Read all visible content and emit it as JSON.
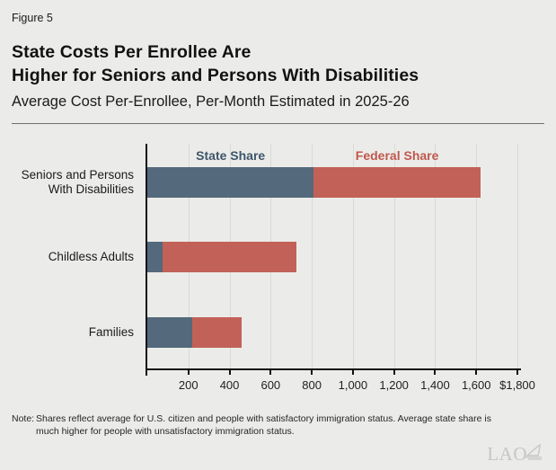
{
  "header": {
    "figure_label": "Figure 5",
    "title_line1": "State Costs Per Enrollee Are",
    "title_line2": "Higher for Seniors and Persons With Disabilities",
    "subtitle": "Average Cost Per-Enrollee, Per-Month Estimated in 2025-26"
  },
  "chart_data": {
    "type": "bar",
    "orientation": "horizontal",
    "stacked": true,
    "title": "Average Cost Per-Enrollee, Per-Month Estimated in 2025-26",
    "categories": [
      {
        "label": "Seniors and Persons With Disabilities",
        "lines": [
          "Seniors and Persons",
          "With Disabilities"
        ]
      },
      {
        "label": "Childless Adults",
        "lines": [
          "Childless Adults"
        ]
      },
      {
        "label": "Families",
        "lines": [
          "Families"
        ]
      }
    ],
    "series": [
      {
        "name": "State Share",
        "color": "#54697b",
        "label_color": "#3e566b",
        "values": [
          810,
          75,
          220
        ]
      },
      {
        "name": "Federal Share",
        "color": "#c26157",
        "label_color": "#c0584d",
        "values": [
          810,
          650,
          240
        ]
      }
    ],
    "xlim": [
      0,
      1800
    ],
    "x_ticks": [
      {
        "value": 200,
        "label": "200"
      },
      {
        "value": 400,
        "label": "400"
      },
      {
        "value": 600,
        "label": "600"
      },
      {
        "value": 800,
        "label": "800"
      },
      {
        "value": 1000,
        "label": "1,000"
      },
      {
        "value": 1200,
        "label": "1,200"
      },
      {
        "value": 1400,
        "label": "1,400"
      },
      {
        "value": 1600,
        "label": "1,600"
      },
      {
        "value": 1800,
        "label": "$1,800"
      }
    ],
    "grid": true,
    "legend_position": "above-first-bar"
  },
  "note": {
    "label": "Note:",
    "lines": [
      "Shares reflect average for U.S. citizen and people with satisfactory immigration status. Average state share is",
      "much higher for people with unsatisfactory immigration status."
    ]
  },
  "logo": {
    "text": "LAO"
  }
}
